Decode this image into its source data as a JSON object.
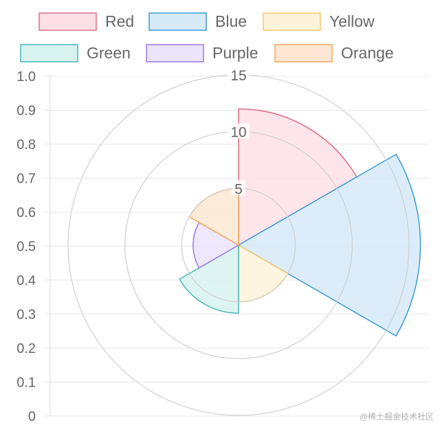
{
  "chart_data": {
    "type": "polarArea",
    "categories": [
      "Red",
      "Blue",
      "Yellow",
      "Green",
      "Purple",
      "Orange"
    ],
    "values": [
      12,
      16,
      5,
      6,
      4,
      5
    ],
    "colors": {
      "Red": {
        "border": "#e06b85",
        "fill": "#fde0e6"
      },
      "Blue": {
        "border": "#3a9bd5",
        "fill": "#d6eaf8"
      },
      "Yellow": {
        "border": "#f5c76a",
        "fill": "#fdf3da"
      },
      "Green": {
        "border": "#45b8b4",
        "fill": "#d8f2f0"
      },
      "Purple": {
        "border": "#9a77e6",
        "fill": "#ece4fb"
      },
      "Orange": {
        "border": "#f3a75c",
        "fill": "#fde7d3"
      }
    },
    "radial_axis": {
      "min": 0,
      "max": 15,
      "ticks": [
        5,
        10,
        15
      ]
    },
    "y_axis": {
      "min": 0,
      "max": 1,
      "ticks": [
        "0",
        "0.1",
        "0.2",
        "0.3",
        "0.4",
        "0.5",
        "0.6",
        "0.7",
        "0.8",
        "0.9",
        "1.0"
      ]
    },
    "legend": {
      "position": "top"
    },
    "grid": true
  },
  "watermark": "@稀土掘金技术社区"
}
